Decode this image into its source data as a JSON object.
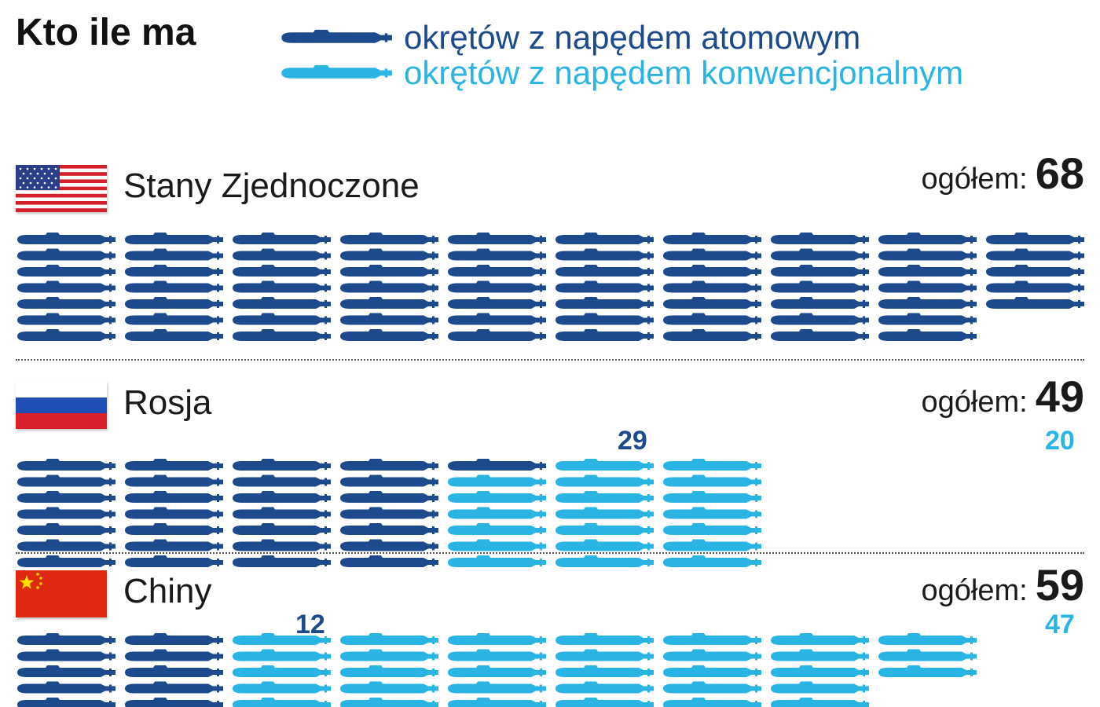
{
  "header": {
    "title": "Kto ile ma",
    "legend": [
      {
        "label": "okrętów z napędem atomowym",
        "color": "#1c4a8c",
        "icon": "submarine-icon"
      },
      {
        "label": "okrętów z napędem konwencjonalnym",
        "color": "#2ab4e4",
        "icon": "submarine-icon"
      }
    ]
  },
  "total_label": "ogółem:",
  "colors": {
    "nuclear": "#1c4a8c",
    "conventional": "#2ab4e4"
  },
  "chart_data": {
    "type": "bar",
    "categories": [
      "Stany Zjednoczone",
      "Rosja",
      "Chiny"
    ],
    "series": [
      {
        "name": "okrętów z napędem atomowym",
        "values": [
          68,
          29,
          12
        ]
      },
      {
        "name": "okrętów z napędem konwencjonalnym",
        "values": [
          0,
          20,
          47
        ]
      }
    ],
    "totals": [
      68,
      49,
      59
    ]
  },
  "countries": [
    {
      "name": "Stany Zjednoczone",
      "flag": "usa-flag",
      "total": "68",
      "nuclear": 68,
      "conventional": 0,
      "nuclear_label": "",
      "conventional_label": ""
    },
    {
      "name": "Rosja",
      "flag": "russia-flag",
      "total": "49",
      "nuclear": 29,
      "conventional": 20,
      "nuclear_label": "29",
      "conventional_label": "20"
    },
    {
      "name": "Chiny",
      "flag": "china-flag",
      "total": "59",
      "nuclear": 12,
      "conventional": 47,
      "nuclear_label": "12",
      "conventional_label": "47"
    }
  ]
}
